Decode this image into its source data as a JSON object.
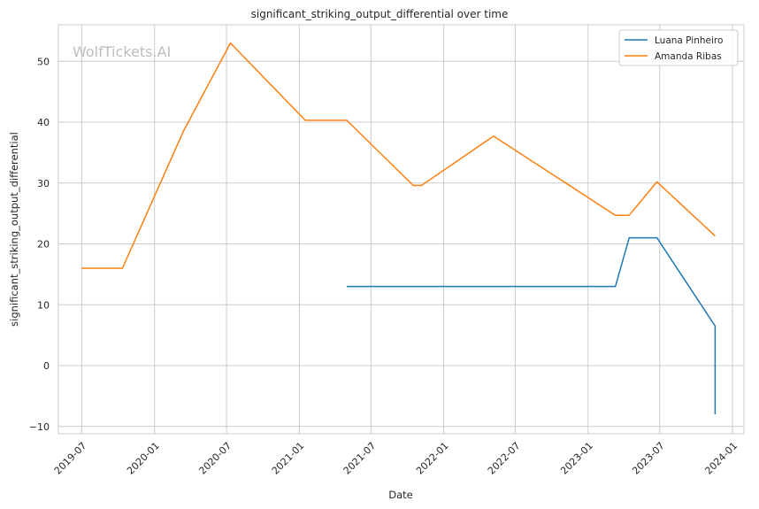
{
  "chart_data": {
    "type": "line",
    "title": "significant_striking_output_differential over time",
    "xlabel": "Date",
    "ylabel": "significant_striking_output_differential",
    "watermark": "WolfTickets.AI",
    "x_ticks": [
      "2019-07",
      "2020-01",
      "2020-07",
      "2021-01",
      "2021-07",
      "2022-01",
      "2022-07",
      "2023-01",
      "2023-07",
      "2024-01"
    ],
    "y_ticks": [
      -10,
      0,
      10,
      20,
      30,
      40,
      50
    ],
    "xlim": [
      "2019-05-03",
      "2024-01-30"
    ],
    "ylim": [
      -11.2,
      56
    ],
    "grid": true,
    "legend_position": "top-right",
    "colors": {
      "Luana Pinheiro": "#1f77b4",
      "Amanda Ribas": "#ff7f0e"
    },
    "series": [
      {
        "name": "Luana Pinheiro",
        "x": [
          "2021-05-01",
          "2023-03-11",
          "2023-04-15",
          "2023-06-24",
          "2023-11-18",
          "2023-11-18"
        ],
        "y": [
          13,
          13,
          21,
          21,
          6.5,
          -8
        ]
      },
      {
        "name": "Amanda Ribas",
        "x": [
          "2019-07-01",
          "2019-10-12",
          "2020-03-14",
          "2020-07-11",
          "2021-01-16",
          "2021-05-01",
          "2021-10-16",
          "2021-11-06",
          "2022-05-07",
          "2023-03-11",
          "2023-04-15",
          "2023-06-24",
          "2023-11-18",
          "2023-11-18"
        ],
        "y": [
          16,
          16,
          38.5,
          53,
          40.3,
          40.3,
          29.6,
          29.6,
          37.7,
          24.7,
          24.7,
          30.2,
          21.3,
          21.3
        ]
      }
    ]
  }
}
